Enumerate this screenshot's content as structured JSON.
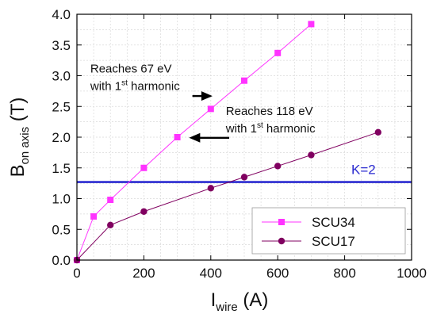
{
  "chart_data": {
    "type": "line",
    "xlabel": {
      "main": "I",
      "sub": "wire",
      "unit": " (A)"
    },
    "ylabel": {
      "main": "B",
      "sub": "on axis",
      "unit": " (T)"
    },
    "xlim": [
      0,
      1000
    ],
    "ylim": [
      0,
      4.0
    ],
    "x_ticks": [
      "0",
      "200",
      "400",
      "600",
      "800",
      "1000"
    ],
    "y_ticks": [
      "0.0",
      "0.5",
      "1.0",
      "1.5",
      "2.0",
      "2.5",
      "3.0",
      "3.5",
      "4.0"
    ],
    "grid": true,
    "legend_position": "bottom-right",
    "series": [
      {
        "name": "SCU34",
        "marker": "square",
        "color": "#ff33ff",
        "x": [
          0,
          50,
          100,
          200,
          300,
          400,
          500,
          600,
          700
        ],
        "y": [
          0.0,
          0.71,
          0.98,
          1.5,
          2.0,
          2.46,
          2.92,
          3.37,
          3.84
        ]
      },
      {
        "name": "SCU17",
        "marker": "circle",
        "color": "#800060",
        "x": [
          0,
          100,
          200,
          400,
          500,
          600,
          700,
          900
        ],
        "y": [
          0.0,
          0.57,
          0.79,
          1.17,
          1.35,
          1.53,
          1.71,
          2.08
        ]
      }
    ],
    "reference_line": {
      "y": 1.27,
      "label": "K=2",
      "color": "#2b2bd0"
    },
    "annotations": [
      {
        "line1": "Reaches  67 eV",
        "line2_pre": "with 1",
        "sup": "st",
        "line2_post": " harmonic"
      },
      {
        "line1": "Reaches  118 eV",
        "line2_pre": "with 1",
        "sup": "st",
        "line2_post": " harmonic"
      }
    ]
  }
}
